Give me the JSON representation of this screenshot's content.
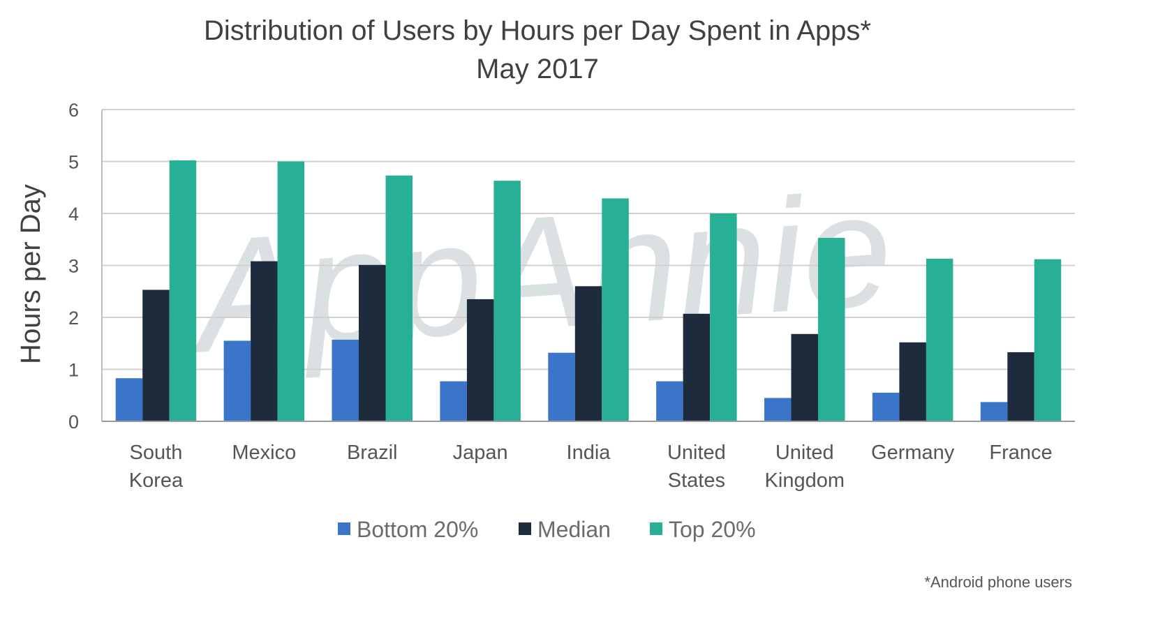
{
  "chart_data": {
    "type": "bar",
    "title": "Distribution of Users by Hours per Day Spent in Apps*",
    "subtitle": "May 2017",
    "xlabel": "",
    "ylabel": "Hours per Day",
    "ylim": [
      0,
      6
    ],
    "yticks": [
      "0",
      "1",
      "2",
      "3",
      "4",
      "5",
      "6"
    ],
    "grid": true,
    "legend_position": "bottom",
    "categories": [
      [
        "South",
        "Korea"
      ],
      [
        "Mexico"
      ],
      [
        "Brazil"
      ],
      [
        "Japan"
      ],
      [
        "India"
      ],
      [
        "United",
        "States"
      ],
      [
        "United",
        "Kingdom"
      ],
      [
        "Germany"
      ],
      [
        "France"
      ]
    ],
    "series": [
      {
        "name": "Bottom 20%",
        "color": "#3a75c9",
        "values": [
          0.83,
          1.55,
          1.57,
          0.77,
          1.32,
          0.77,
          0.45,
          0.55,
          0.37
        ]
      },
      {
        "name": "Median",
        "color": "#1e2b3c",
        "values": [
          2.53,
          3.08,
          3.01,
          2.35,
          2.6,
          2.07,
          1.68,
          1.52,
          1.33
        ]
      },
      {
        "name": "Top 20%",
        "color": "#27b096",
        "values": [
          5.02,
          5.0,
          4.73,
          4.63,
          4.29,
          4.0,
          3.53,
          3.13,
          3.12
        ]
      }
    ],
    "footnote": "*Android phone users",
    "watermark": "AppAnnie"
  }
}
